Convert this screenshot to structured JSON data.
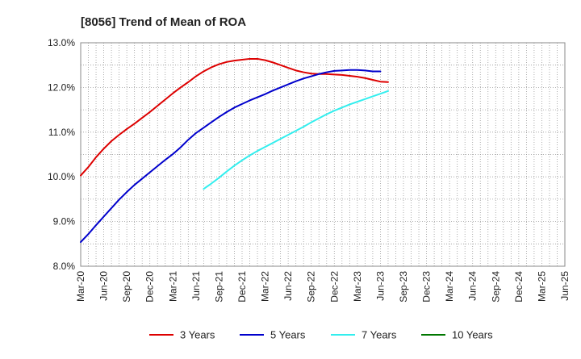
{
  "chart_data": {
    "type": "line",
    "title": "[8056]  Trend of Mean of ROA",
    "xlabel": "",
    "ylabel": "",
    "ylim": [
      8.0,
      13.0
    ],
    "y_ticks": [
      "8.0%",
      "9.0%",
      "10.0%",
      "11.0%",
      "12.0%",
      "13.0%"
    ],
    "x_ticks": [
      "Mar-20",
      "Jun-20",
      "Sep-20",
      "Dec-20",
      "Mar-21",
      "Jun-21",
      "Sep-21",
      "Dec-21",
      "Mar-22",
      "Jun-22",
      "Sep-22",
      "Dec-22",
      "Mar-23",
      "Jun-23",
      "Sep-23",
      "Dec-23",
      "Mar-24",
      "Jun-24",
      "Sep-24",
      "Dec-24",
      "Mar-25",
      "Jun-25"
    ],
    "grid": true,
    "legend_position": "bottom",
    "series": [
      {
        "name": "3 Years",
        "color": "#dd0000",
        "values": [
          10.03,
          10.22,
          10.44,
          10.63,
          10.8,
          10.94,
          11.07,
          11.19,
          11.32,
          11.45,
          11.59,
          11.73,
          11.87,
          12.0,
          12.12,
          12.25,
          12.36,
          12.45,
          12.52,
          12.57,
          12.6,
          12.62,
          12.64,
          12.64,
          12.61,
          12.56,
          12.5,
          12.44,
          12.38,
          12.34,
          12.31,
          12.3,
          12.3,
          12.29,
          12.28,
          12.26,
          12.24,
          12.21,
          12.17,
          12.13,
          12.12
        ]
      },
      {
        "name": "5 Years",
        "color": "#0000cc",
        "values": [
          8.54,
          8.72,
          8.92,
          9.11,
          9.3,
          9.49,
          9.66,
          9.82,
          9.96,
          10.1,
          10.24,
          10.38,
          10.51,
          10.66,
          10.83,
          10.98,
          11.1,
          11.22,
          11.34,
          11.45,
          11.55,
          11.63,
          11.71,
          11.78,
          11.85,
          11.93,
          12.0,
          12.07,
          12.14,
          12.2,
          12.25,
          12.3,
          12.34,
          12.37,
          12.38,
          12.39,
          12.39,
          12.38,
          12.36,
          12.36
        ]
      },
      {
        "name": "7 Years",
        "color": "#33eeee",
        "values": [
          null,
          null,
          null,
          null,
          null,
          null,
          null,
          null,
          null,
          null,
          null,
          null,
          null,
          null,
          null,
          null,
          9.73,
          9.85,
          9.98,
          10.12,
          10.25,
          10.37,
          10.48,
          10.58,
          10.67,
          10.76,
          10.85,
          10.94,
          11.03,
          11.12,
          11.22,
          11.31,
          11.4,
          11.48,
          11.55,
          11.62,
          11.68,
          11.74,
          11.8,
          11.86,
          11.92
        ]
      },
      {
        "name": "10 Years",
        "color": "#007700",
        "values": []
      }
    ]
  }
}
